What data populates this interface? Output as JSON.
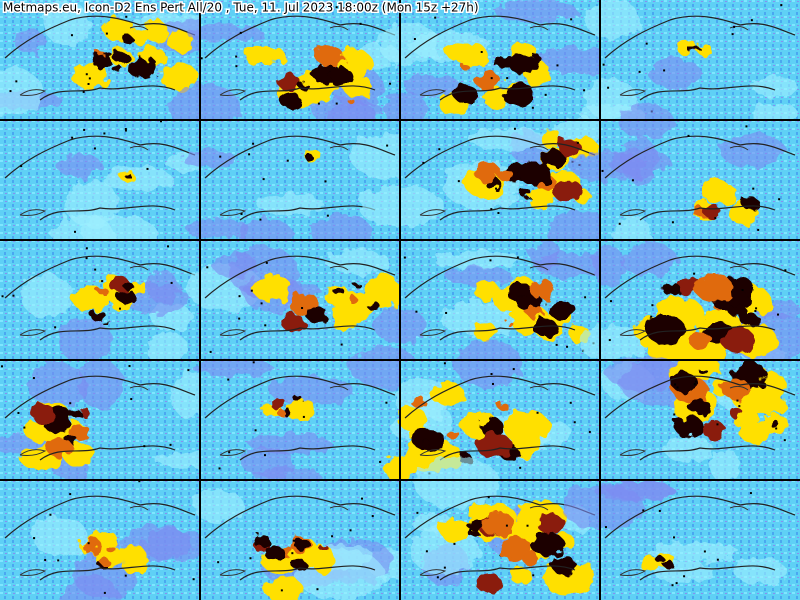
{
  "header": {
    "title": "Metmaps.eu, Icon-D2 Ens Pert All/20 , Tue, 11. Jul 2023 18:00z (Mon 15z +27h)"
  }
}
